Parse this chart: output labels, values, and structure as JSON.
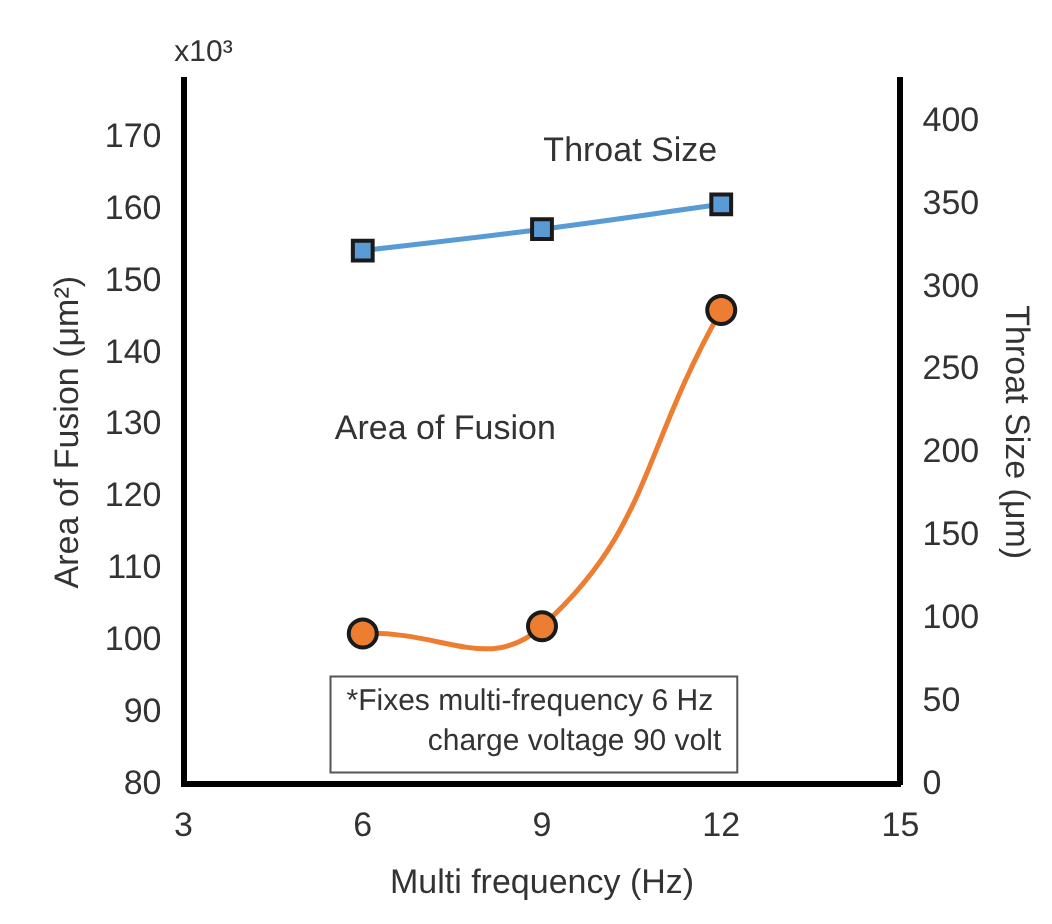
{
  "chart_data": {
    "type": "line",
    "xlabel": "Multi frequency (Hz)",
    "ylabel": "Area of Fusion (μm²)",
    "y2label": "Throat Size (μm)",
    "x": [
      6,
      9,
      12
    ],
    "series": [
      {
        "name": "Throat Size",
        "color": "#5b9bd5",
        "values": [
          322,
          335,
          350
        ],
        "axis": "y2",
        "marker": "square"
      },
      {
        "name": "Area of Fusion",
        "color": "#ed7d31",
        "values": [
          101,
          102,
          146
        ],
        "marker": "circle"
      }
    ],
    "xlim": [
      3,
      15
    ],
    "xticks": [
      3,
      6,
      9,
      12,
      15
    ],
    "ylim": [
      80,
      178
    ],
    "yticks": [
      80,
      90,
      100,
      110,
      120,
      130,
      140,
      150,
      160,
      170
    ],
    "y2lim": [
      0,
      425
    ],
    "y2ticks": [
      0,
      50,
      100,
      150,
      200,
      250,
      300,
      350,
      400
    ],
    "grid": false,
    "legend": false,
    "annotations": [
      "x10³",
      "*Fixes multi-frequency 6 Hz\ncharge voltage 90 volt"
    ]
  }
}
